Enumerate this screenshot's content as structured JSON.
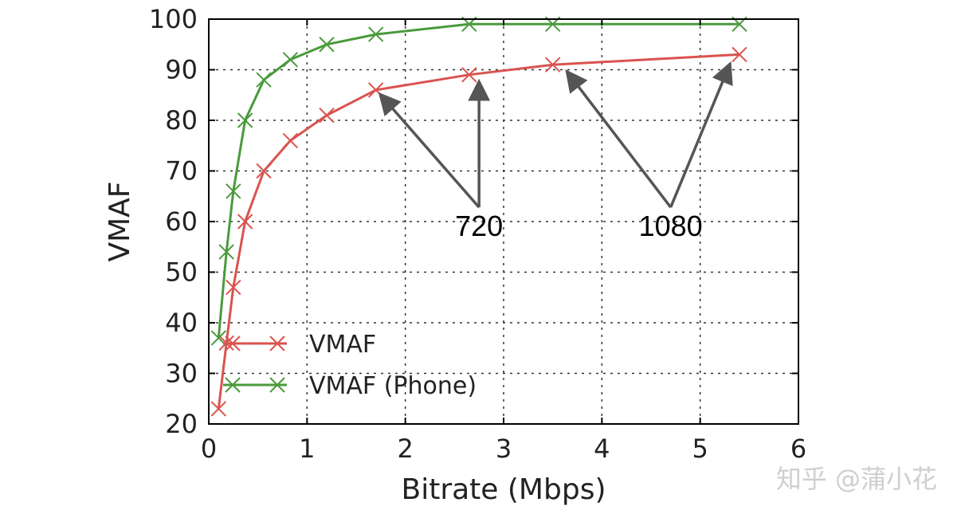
{
  "chart_data": {
    "type": "line",
    "title": "",
    "xlabel": "Bitrate (Mbps)",
    "ylabel": "VMAF",
    "xlim": [
      0,
      6
    ],
    "ylim": [
      20,
      100
    ],
    "xticks": [
      0,
      1,
      2,
      3,
      4,
      5,
      6
    ],
    "yticks": [
      20,
      30,
      40,
      50,
      60,
      70,
      80,
      90,
      100
    ],
    "xtick_labels": [
      "0",
      "1",
      "2",
      "3",
      "4",
      "5",
      "6"
    ],
    "ytick_labels": [
      "20",
      "30",
      "40",
      "50",
      "60",
      "70",
      "80",
      "90",
      "100"
    ],
    "grid": true,
    "legend_position": "lower-left",
    "series": [
      {
        "name": "VMAF",
        "color": "#d9534f",
        "marker": "x",
        "points": [
          [
            0.1,
            23
          ],
          [
            0.18,
            36
          ],
          [
            0.25,
            47
          ],
          [
            0.37,
            60
          ],
          [
            0.56,
            70
          ],
          [
            0.83,
            76
          ],
          [
            1.2,
            81
          ],
          [
            1.7,
            86
          ],
          [
            2.65,
            89
          ],
          [
            3.5,
            91
          ],
          [
            5.4,
            93
          ]
        ]
      },
      {
        "name": "VMAF (Phone)",
        "color": "#4a9a3c",
        "marker": "x",
        "points": [
          [
            0.1,
            37
          ],
          [
            0.18,
            54
          ],
          [
            0.25,
            66
          ],
          [
            0.37,
            80
          ],
          [
            0.56,
            88
          ],
          [
            0.83,
            92
          ],
          [
            1.2,
            95
          ],
          [
            1.7,
            97
          ],
          [
            2.65,
            99
          ],
          [
            3.5,
            99
          ],
          [
            5.4,
            99
          ]
        ]
      }
    ],
    "annotations": [
      {
        "text": "720",
        "label_at": [
          2.75,
          62.5
        ],
        "targets": [
          [
            1.75,
            85
          ],
          [
            2.75,
            87.5
          ]
        ]
      },
      {
        "text": "1080",
        "label_at": [
          4.7,
          62.5
        ],
        "targets": [
          [
            3.65,
            89.5
          ],
          [
            5.3,
            91
          ]
        ]
      }
    ]
  },
  "watermark": {
    "text": "知乎 @蒲小花"
  }
}
